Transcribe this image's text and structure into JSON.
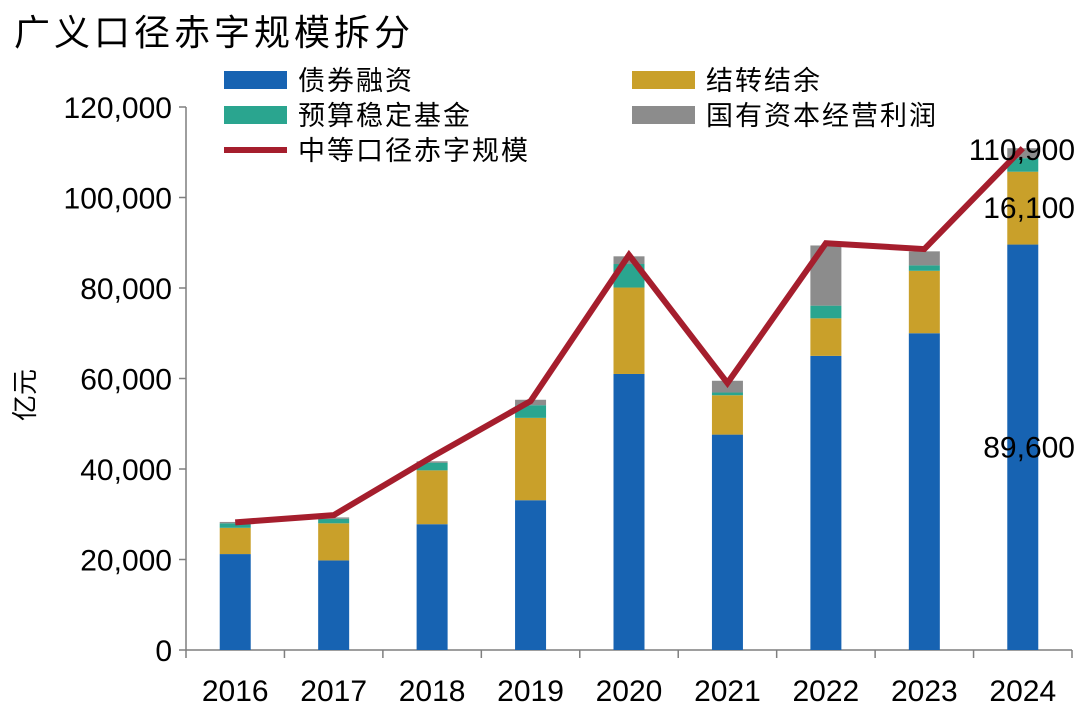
{
  "title": "广义口径赤字规模拆分",
  "chart_data": {
    "type": "bar",
    "stacked": true,
    "title": "广义口径赤字规模拆分",
    "ylabel": "亿元",
    "xlabel": "",
    "ylim": [
      0,
      120000
    ],
    "yticks": [
      "0",
      "20,000",
      "40,000",
      "60,000",
      "80,000",
      "100,000",
      "120,000"
    ],
    "ytick_values": [
      0,
      20000,
      40000,
      60000,
      80000,
      100000,
      120000
    ],
    "categories": [
      "2016",
      "2017",
      "2018",
      "2019",
      "2020",
      "2021",
      "2022",
      "2023",
      "2024"
    ],
    "series": [
      {
        "name": "债券融资",
        "color": "#1763B2",
        "values": [
          21200,
          19800,
          27800,
          33100,
          61000,
          47600,
          65000,
          70000,
          89600
        ]
      },
      {
        "name": "结转结余",
        "color": "#C9A02A",
        "values": [
          5800,
          8200,
          11900,
          18200,
          19100,
          8700,
          8300,
          13800,
          16100
        ]
      },
      {
        "name": "预算稳定基金",
        "color": "#2AA58F",
        "values": [
          1000,
          1000,
          1700,
          2800,
          5200,
          600,
          2800,
          1200,
          3000
        ]
      },
      {
        "name": "国有资本经营利润",
        "color": "#8C8C8C",
        "values": [
          300,
          300,
          300,
          1200,
          1700,
          2600,
          13300,
          3100,
          2200
        ]
      }
    ],
    "line_series": {
      "name": "中等口径赤字规模",
      "color": "#A51E2D",
      "values": [
        28200,
        29800,
        42700,
        55000,
        87300,
        59000,
        89900,
        88600,
        110900
      ]
    },
    "annotations": [
      "110,900",
      "16,100",
      "89,600"
    ],
    "legend": "top",
    "grid": false
  }
}
